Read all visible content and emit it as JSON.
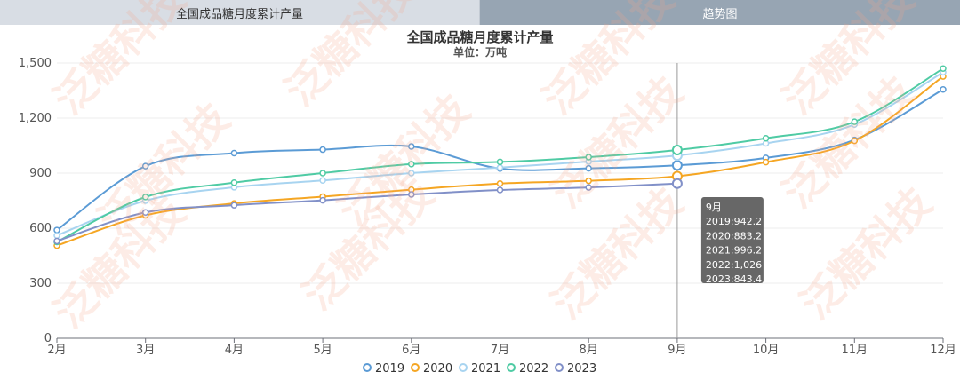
{
  "tabs": [
    {
      "label": "全国成品糖月度累计产量"
    },
    {
      "label": "趋势图"
    }
  ],
  "watermark": "泛糖科技",
  "chart_data": {
    "type": "line",
    "title": "全国成品糖月度累计产量",
    "subtitle": "单位：万吨",
    "categories": [
      "2月",
      "3月",
      "4月",
      "5月",
      "6月",
      "7月",
      "8月",
      "9月",
      "10月",
      "11月",
      "12月"
    ],
    "ylim": [
      0,
      1500
    ],
    "yticks": [
      "0",
      "300",
      "600",
      "900",
      "1,200",
      "1,500"
    ],
    "grid": true,
    "legend_position": "bottom",
    "series": [
      {
        "name": "2019",
        "color": "#5b9bd5",
        "values": [
          590,
          938,
          1009,
          1028,
          1045,
          925,
          926,
          942.2,
          983,
          1081,
          1356
        ]
      },
      {
        "name": "2020",
        "color": "#f5a623",
        "values": [
          505,
          670,
          735,
          772,
          810,
          843,
          858,
          883.2,
          960,
          1076,
          1427
        ]
      },
      {
        "name": "2021",
        "color": "#a8d4f0",
        "values": [
          560,
          750,
          823,
          860,
          900,
          930,
          963,
          996.2,
          1062,
          1165,
          1450
        ]
      },
      {
        "name": "2022",
        "color": "#4fcba4",
        "values": [
          525,
          770,
          848,
          900,
          949,
          961,
          987,
          1026,
          1090,
          1180,
          1470
        ]
      },
      {
        "name": "2023",
        "color": "#8190c8",
        "values": [
          530,
          686,
          725,
          752,
          784,
          808,
          822,
          843.4,
          null,
          null,
          null
        ]
      }
    ],
    "tooltip": {
      "category": "9月",
      "lines": [
        "9月",
        "2019:942.2",
        "2020:883.2",
        "2021:996.2",
        "2022:1,026",
        "2023:843.4"
      ]
    }
  }
}
